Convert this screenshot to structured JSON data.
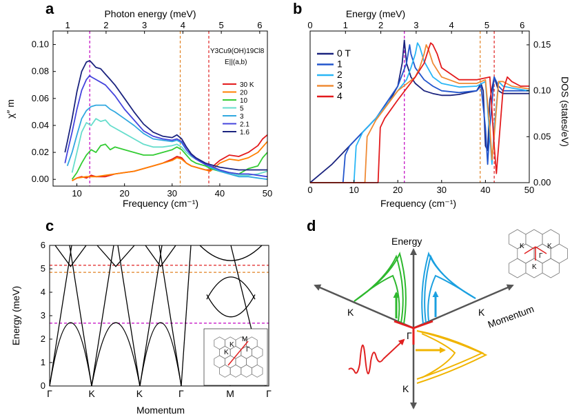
{
  "panels": {
    "a": {
      "label": "a"
    },
    "b": {
      "label": "b"
    },
    "c": {
      "label": "c"
    },
    "d": {
      "label": "d"
    }
  },
  "chart_data": [
    {
      "id": "a",
      "type": "line",
      "xlabel": "Frequency (cm⁻¹)",
      "ylabel": "χ″ m",
      "top_xlabel": "Photon energy (meV)",
      "xlim": [
        5,
        50
      ],
      "ylim": [
        -0.005,
        0.11
      ],
      "top_xlim": [
        0.62,
        6.2
      ],
      "xticks": [
        10,
        20,
        30,
        40,
        50
      ],
      "yticks": [
        0.0,
        0.02,
        0.04,
        0.06,
        0.08,
        0.1
      ],
      "ytick_labels": [
        "0.00",
        "0.02",
        "0.04",
        "0.06",
        "0.08",
        "0.10"
      ],
      "top_xticks": [
        1,
        2,
        3,
        4,
        5,
        6
      ],
      "annotation_formula": "Y3Cu9(OH)19Cl8",
      "annotation_condition": "E||(a,b)",
      "vlines": [
        {
          "x": 12.7,
          "color": "#c000c0"
        },
        {
          "x": 31.7,
          "color": "#e08020"
        },
        {
          "x": 37.7,
          "color": "#e02020"
        }
      ],
      "legend_position": "right",
      "series": [
        {
          "name": "30 K",
          "color": "#e31a1c",
          "x": [
            9,
            10,
            11,
            12,
            13,
            14,
            16,
            18,
            20,
            22,
            24,
            26,
            28,
            30,
            31,
            32,
            33,
            34,
            35,
            36,
            37,
            38,
            39,
            40,
            42,
            44,
            46,
            48,
            49,
            50
          ],
          "y": [
            -0.001,
            0.001,
            0.002,
            0.001,
            0.003,
            0.002,
            0.002,
            0.004,
            0.005,
            0.006,
            0.008,
            0.01,
            0.012,
            0.015,
            0.017,
            0.016,
            0.012,
            0.01,
            0.009,
            0.008,
            0.007,
            0.007,
            0.011,
            0.014,
            0.018,
            0.017,
            0.02,
            0.025,
            0.03,
            0.033
          ]
        },
        {
          "name": "20",
          "color": "#ff7f00",
          "x": [
            9,
            10,
            12,
            14,
            16,
            18,
            20,
            22,
            24,
            26,
            28,
            30,
            31,
            32,
            33,
            34,
            35,
            36,
            37,
            38,
            39,
            40,
            42,
            44,
            46,
            48,
            50
          ],
          "y": [
            -0.001,
            0.001,
            0.002,
            0.002,
            0.003,
            0.004,
            0.005,
            0.006,
            0.008,
            0.01,
            0.012,
            0.014,
            0.016,
            0.015,
            0.012,
            0.01,
            0.009,
            0.008,
            0.007,
            0.006,
            0.009,
            0.012,
            0.015,
            0.014,
            0.016,
            0.02,
            0.028
          ]
        },
        {
          "name": "10",
          "color": "#33cc33",
          "x": [
            9,
            10,
            11,
            12,
            13,
            14,
            15,
            16,
            17,
            18,
            20,
            22,
            24,
            26,
            28,
            30,
            31,
            32,
            33,
            34,
            35,
            36,
            37,
            38,
            40,
            42,
            44,
            46,
            48,
            49,
            50
          ],
          "y": [
            0.0,
            0.005,
            0.012,
            0.018,
            0.022,
            0.02,
            0.025,
            0.026,
            0.022,
            0.024,
            0.022,
            0.02,
            0.018,
            0.018,
            0.02,
            0.022,
            0.024,
            0.022,
            0.018,
            0.014,
            0.012,
            0.011,
            0.01,
            0.008,
            0.006,
            0.005,
            0.004,
            0.008,
            0.01,
            0.016,
            0.02
          ]
        },
        {
          "name": "5",
          "color": "#66ddcc",
          "x": [
            9,
            10,
            11,
            12,
            13,
            14,
            15,
            16,
            17,
            18,
            20,
            22,
            24,
            26,
            28,
            30,
            31,
            32,
            33,
            34,
            35,
            36,
            37,
            38,
            40,
            42,
            44,
            46,
            48,
            50
          ],
          "y": [
            0.005,
            0.02,
            0.035,
            0.042,
            0.04,
            0.045,
            0.043,
            0.044,
            0.04,
            0.038,
            0.034,
            0.03,
            0.026,
            0.024,
            0.024,
            0.025,
            0.026,
            0.024,
            0.02,
            0.017,
            0.015,
            0.013,
            0.011,
            0.009,
            0.006,
            0.004,
            0.003,
            0.003,
            0.004,
            0.006
          ]
        },
        {
          "name": "3",
          "color": "#30a8e0",
          "x": [
            8,
            9,
            10,
            11,
            12,
            13,
            14,
            15,
            16,
            17,
            18,
            20,
            22,
            24,
            26,
            28,
            30,
            31,
            32,
            33,
            34,
            35,
            36,
            37,
            38,
            40,
            42,
            44,
            46,
            48,
            50
          ],
          "y": [
            0.01,
            0.02,
            0.033,
            0.045,
            0.051,
            0.054,
            0.055,
            0.055,
            0.055,
            0.052,
            0.05,
            0.045,
            0.04,
            0.034,
            0.03,
            0.029,
            0.028,
            0.029,
            0.027,
            0.022,
            0.018,
            0.015,
            0.013,
            0.011,
            0.009,
            0.006,
            0.004,
            0.002,
            0.002,
            0.001,
            0.0
          ]
        },
        {
          "name": "2.1",
          "color": "#4444dd",
          "x": [
            7.5,
            8,
            9,
            10,
            11,
            12,
            12.7,
            13,
            14,
            15,
            16,
            17,
            18,
            20,
            22,
            24,
            26,
            28,
            30,
            31,
            32,
            33,
            34,
            35,
            36,
            37,
            38,
            40,
            42,
            44,
            46,
            48,
            50
          ],
          "y": [
            0.012,
            0.02,
            0.035,
            0.052,
            0.066,
            0.074,
            0.077,
            0.076,
            0.074,
            0.072,
            0.07,
            0.066,
            0.062,
            0.052,
            0.044,
            0.036,
            0.032,
            0.03,
            0.029,
            0.03,
            0.028,
            0.022,
            0.018,
            0.015,
            0.013,
            0.011,
            0.01,
            0.007,
            0.005,
            0.004,
            0.004,
            0.003,
            0.002
          ]
        },
        {
          "name": "1.6",
          "color": "#1a237e",
          "x": [
            7.5,
            8,
            9,
            10,
            11,
            12,
            12.7,
            13,
            14,
            15,
            16,
            17,
            18,
            20,
            22,
            24,
            26,
            28,
            30,
            31,
            32,
            33,
            34,
            35,
            36,
            37,
            38,
            40,
            42,
            44,
            46,
            48,
            50
          ],
          "y": [
            0.02,
            0.028,
            0.045,
            0.065,
            0.08,
            0.087,
            0.088,
            0.087,
            0.083,
            0.082,
            0.078,
            0.074,
            0.07,
            0.06,
            0.05,
            0.041,
            0.035,
            0.032,
            0.031,
            0.033,
            0.03,
            0.024,
            0.019,
            0.016,
            0.014,
            0.012,
            0.011,
            0.009,
            0.008,
            0.007,
            0.007,
            0.007,
            0.007
          ]
        }
      ]
    },
    {
      "id": "b",
      "type": "line",
      "xlabel": "Frequency (cm⁻¹)",
      "top_xlabel": "Energy (meV)",
      "ylabel": "DOS (states/eV)",
      "xlim": [
        0,
        50
      ],
      "ylim": [
        0,
        0.165
      ],
      "top_xlim": [
        0,
        6.2
      ],
      "xticks": [
        0,
        10,
        20,
        30,
        40,
        50
      ],
      "yticks": [
        0.0,
        0.05,
        0.1,
        0.15
      ],
      "ytick_labels": [
        "0.00",
        "0.05",
        "0.10",
        "0.15"
      ],
      "top_xticks": [
        0,
        1,
        2,
        3,
        4,
        5,
        6
      ],
      "vlines": [
        {
          "x": 21.5,
          "color": "#c000c0"
        },
        {
          "x": 38.8,
          "color": "#e08020"
        },
        {
          "x": 42.0,
          "color": "#e02020"
        }
      ],
      "legend_position": "top-left",
      "series": [
        {
          "name": "0 T",
          "color": "#1a237e",
          "x": [
            0,
            5,
            10,
            15,
            18,
            20,
            21,
            21.5,
            22,
            23,
            24,
            26,
            28,
            30,
            32,
            34,
            36,
            38,
            39,
            39.5,
            40,
            40.5,
            41,
            42,
            43,
            44,
            46,
            48,
            50
          ],
          "y": [
            0.0,
            0.02,
            0.045,
            0.07,
            0.088,
            0.105,
            0.13,
            0.155,
            0.13,
            0.115,
            0.108,
            0.1,
            0.097,
            0.095,
            0.095,
            0.096,
            0.098,
            0.1,
            0.108,
            0.1,
            0.04,
            0.035,
            0.09,
            0.115,
            0.1,
            0.097,
            0.097,
            0.097,
            0.097
          ]
        },
        {
          "name": "1",
          "color": "#2255cc",
          "x": [
            0,
            7.5,
            8,
            9,
            10,
            15,
            20,
            22,
            22.7,
            23,
            24,
            26,
            28,
            30,
            34,
            38,
            39,
            40,
            40.5,
            41,
            42,
            43,
            44,
            46,
            50
          ],
          "y": [
            0.0,
            0.0,
            0.03,
            0.04,
            0.045,
            0.07,
            0.105,
            0.13,
            0.15,
            0.14,
            0.125,
            0.112,
            0.105,
            0.1,
            0.098,
            0.1,
            0.105,
            0.06,
            0.02,
            0.06,
            0.115,
            0.105,
            0.1,
            0.1,
            0.1
          ]
        },
        {
          "name": "2",
          "color": "#29b6f6",
          "x": [
            0,
            10,
            10.5,
            12,
            15,
            20,
            22,
            23,
            24,
            24.5,
            25,
            26,
            28,
            30,
            34,
            38,
            40,
            41,
            41.5,
            42,
            43,
            44,
            46,
            50
          ],
          "y": [
            0.0,
            0.0,
            0.04,
            0.055,
            0.07,
            0.1,
            0.112,
            0.125,
            0.14,
            0.152,
            0.148,
            0.132,
            0.115,
            0.108,
            0.104,
            0.105,
            0.11,
            0.05,
            0.02,
            0.06,
            0.11,
            0.105,
            0.103,
            0.1
          ]
        },
        {
          "name": "3",
          "color": "#ef8a34",
          "x": [
            0,
            12.5,
            13,
            15,
            20,
            24,
            25,
            26,
            26.5,
            27,
            28,
            30,
            34,
            38,
            40,
            41,
            41.5,
            42,
            43,
            44,
            46,
            50
          ],
          "y": [
            0.0,
            0.0,
            0.05,
            0.068,
            0.1,
            0.115,
            0.125,
            0.14,
            0.15,
            0.145,
            0.13,
            0.115,
            0.108,
            0.108,
            0.112,
            0.06,
            0.025,
            0.05,
            0.11,
            0.11,
            0.105,
            0.102
          ]
        },
        {
          "name": "4",
          "color": "#e31a1c",
          "x": [
            0,
            15.5,
            16,
            17,
            20,
            24,
            26,
            27,
            27.5,
            28,
            29,
            30,
            34,
            38,
            41,
            42,
            42.5,
            43,
            44,
            45,
            46,
            48,
            50
          ],
          "y": [
            0.0,
            0.0,
            0.06,
            0.07,
            0.09,
            0.115,
            0.13,
            0.145,
            0.152,
            0.15,
            0.14,
            0.125,
            0.112,
            0.112,
            0.115,
            0.04,
            0.01,
            0.04,
            0.1,
            0.115,
            0.11,
            0.105,
            0.105
          ]
        }
      ]
    },
    {
      "id": "c",
      "type": "line",
      "xlabel": "Momentum",
      "ylabel": "Energy (meV)",
      "ylim": [
        0,
        6
      ],
      "yticks": [
        0,
        1,
        2,
        3,
        4,
        5,
        6
      ],
      "xtick_labels": [
        "Γ",
        "K",
        "K",
        "Γ",
        "M",
        "Γ"
      ],
      "hlines": [
        {
          "y": 2.68,
          "color": "#c000c0"
        },
        {
          "y": 4.85,
          "color": "#e08020"
        },
        {
          "y": 5.15,
          "color": "#e02020"
        }
      ],
      "inset_labels": [
        "M",
        "K",
        "K",
        "Γ"
      ]
    }
  ],
  "diagram_d": {
    "axis_energy": "Energy",
    "axis_momentum": "Momentum",
    "center_label": "Γ",
    "k_left": "K",
    "k_right": "K",
    "k_bottom": "K",
    "inset_labels": [
      "K",
      "K",
      "K",
      "Γ"
    ]
  }
}
